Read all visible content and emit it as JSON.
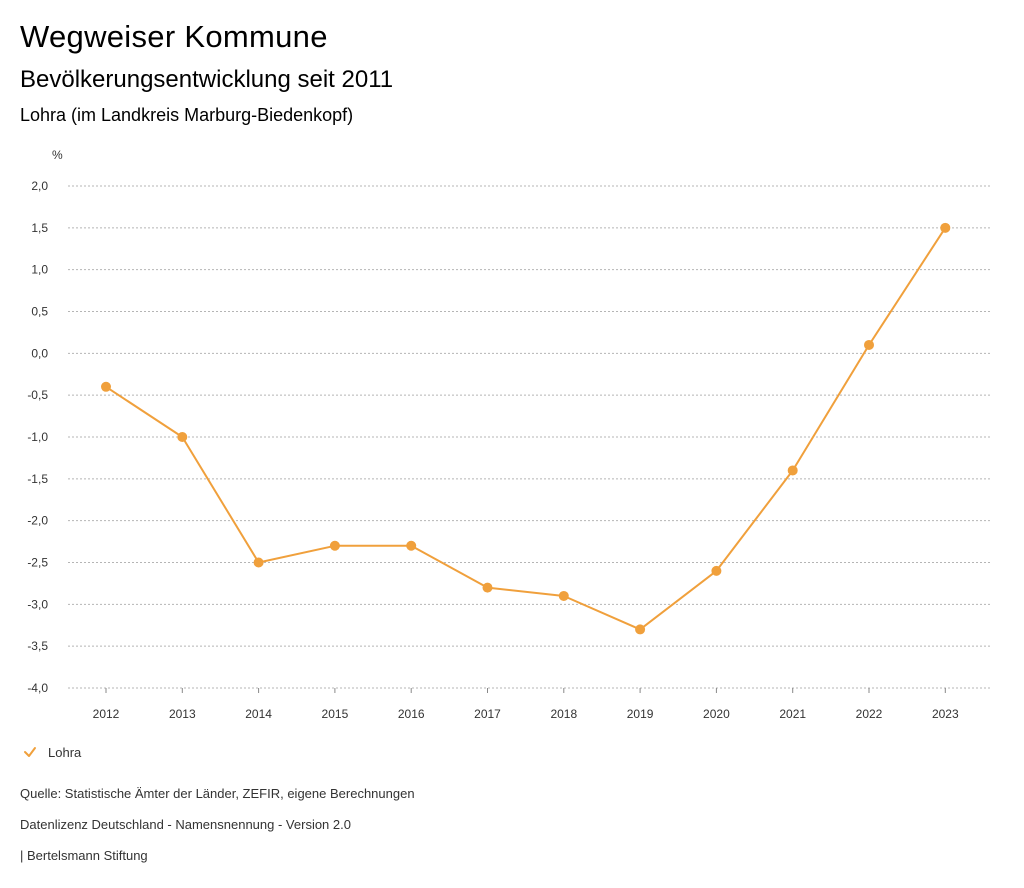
{
  "header": {
    "title": "Wegweiser Kommune",
    "subtitle": "Bevölkerungsentwicklung seit 2011",
    "region": "Lohra (im Landkreis Marburg-Biedenkopf)"
  },
  "chart_data": {
    "type": "line",
    "ylabel": "%",
    "ylim": [
      -4.0,
      2.0
    ],
    "y_ticks": [
      "2,0",
      "1,5",
      "1,0",
      "0,5",
      "0,0",
      "-0,5",
      "-1,0",
      "-1,5",
      "-2,0",
      "-2,5",
      "-3,0",
      "-3,5",
      "-4,0"
    ],
    "y_tick_values": [
      2.0,
      1.5,
      1.0,
      0.5,
      0.0,
      -0.5,
      -1.0,
      -1.5,
      -2.0,
      -2.5,
      -3.0,
      -3.5,
      -4.0
    ],
    "categories": [
      "2012",
      "2013",
      "2014",
      "2015",
      "2016",
      "2017",
      "2018",
      "2019",
      "2020",
      "2021",
      "2022",
      "2023"
    ],
    "series": [
      {
        "name": "Lohra",
        "color": "#F0A03C",
        "values": [
          -0.4,
          -1.0,
          -2.5,
          -2.3,
          -2.3,
          -2.8,
          -2.9,
          -3.3,
          -2.6,
          -1.4,
          0.1,
          1.5
        ]
      }
    ],
    "grid": true,
    "legend": "bottom-left"
  },
  "legend": {
    "label": "Lohra",
    "icon": "check-icon"
  },
  "footer": {
    "source": "Quelle: Statistische Ämter der Länder, ZEFIR, eigene Berechnungen",
    "license": "Datenlizenz Deutschland - Namensnennung - Version 2.0",
    "publisher": "| Bertelsmann Stiftung"
  }
}
